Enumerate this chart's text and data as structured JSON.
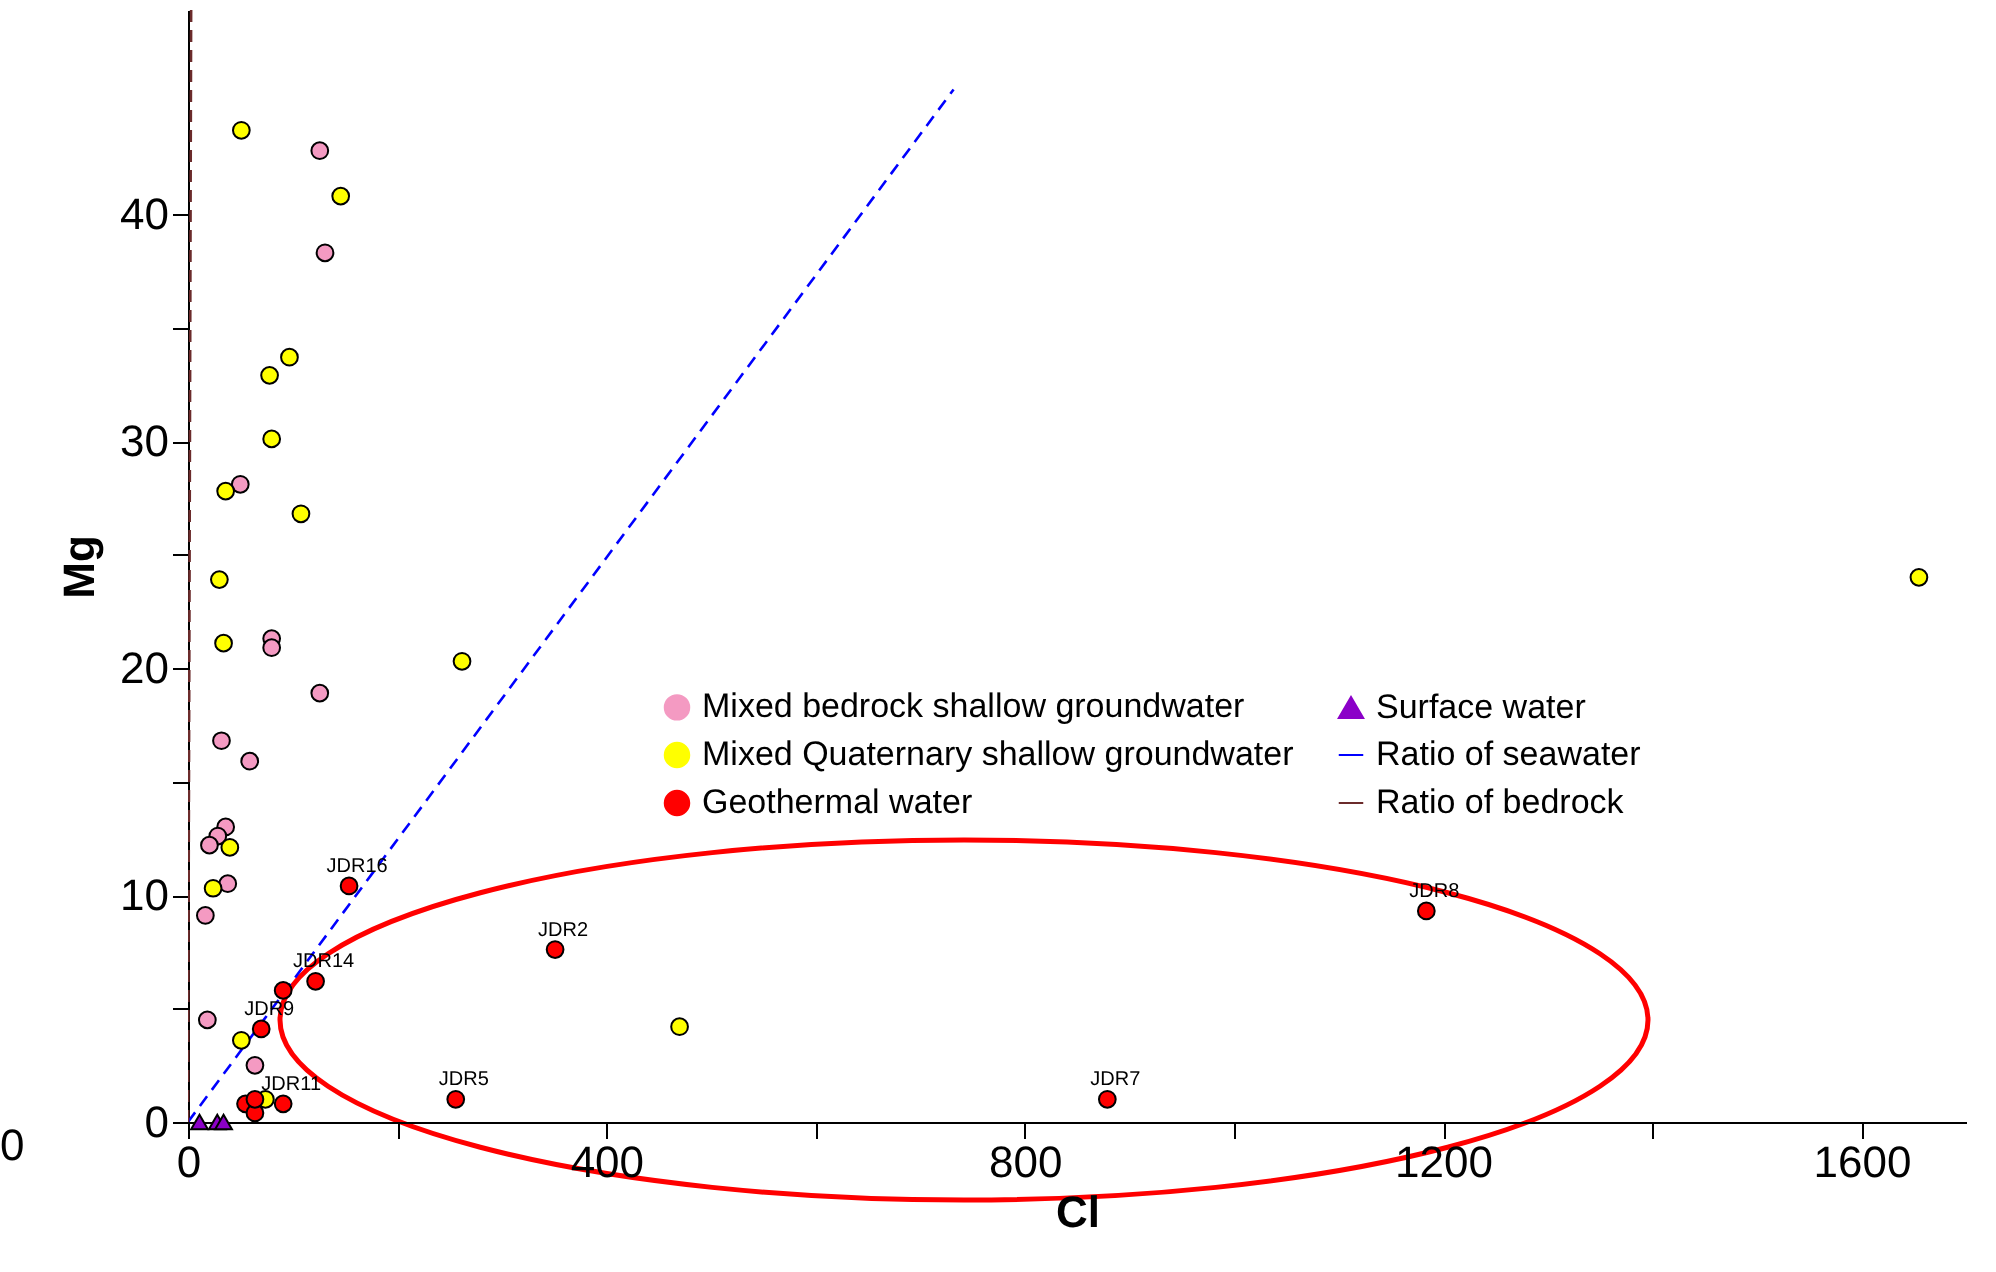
{
  "chart_data": {
    "type": "scatter",
    "xlabel": "Cl",
    "ylabel": "Mg",
    "xlim": [
      0,
      1700
    ],
    "ylim": [
      0,
      49
    ],
    "xticks": [
      0,
      {
        "value": 200,
        "label": null
      },
      400,
      {
        "value": 600,
        "label": null
      },
      800,
      {
        "value": 1000,
        "label": null
      },
      1200,
      {
        "value": 1400,
        "label": null
      },
      1600
    ],
    "yticks": [
      0,
      {
        "value": 5,
        "label": null
      },
      10,
      {
        "value": 15,
        "label": null
      },
      20,
      {
        "value": 25,
        "label": null
      },
      30,
      {
        "value": 35,
        "label": null
      },
      40
    ],
    "grid": false,
    "legend": "right",
    "series": [
      {
        "name": "Mixed bedrock shallow groundwater",
        "marker": "circle",
        "color": "#f49ac2",
        "x": [
          126,
          131,
          50,
          80,
          80,
          126,
          32,
          59,
          36,
          28.5,
          20.5,
          38,
          16.6,
          18.5,
          64
        ],
        "values": [
          42.8,
          38.3,
          28.1,
          21.3,
          20.9,
          18.9,
          16.8,
          15.9,
          13.0,
          12.6,
          12.2,
          10.5,
          9.1,
          4.5,
          2.5
        ]
      },
      {
        "name": "Mixed Quaternary shallow groundwater",
        "marker": "circle",
        "color": "#ffff00",
        "x": [
          51,
          146,
          97,
          78,
          80,
          36,
          108,
          30,
          34,
          262,
          1655,
          40,
          24,
          470,
          51,
          74
        ],
        "values": [
          43.7,
          40.8,
          33.7,
          32.9,
          30.1,
          27.8,
          26.8,
          23.9,
          21.1,
          20.3,
          24.0,
          12.1,
          10.3,
          4.2,
          3.6,
          1.0
        ]
      },
      {
        "name": "Geothermal water",
        "marker": "circle",
        "color": "#ff0000",
        "x": [
          154,
          122,
          91,
          70,
          351,
          1184,
          256,
          879,
          91,
          55,
          64,
          64
        ],
        "values": [
          10.4,
          6.2,
          5.8,
          4.1,
          7.6,
          9.3,
          1.0,
          1.0,
          0.8,
          0.8,
          0.4,
          1.0
        ]
      },
      {
        "name": "Surface water",
        "marker": "triangle",
        "color": "#8b00c8",
        "x": [
          11,
          28,
          34
        ],
        "values": [
          0,
          0,
          0
        ]
      },
      {
        "name": "Ratio of seawater",
        "type": "line",
        "line_style": "dashed",
        "color": "#0000ff",
        "x": [
          0,
          732
        ],
        "values": [
          0,
          45.5
        ]
      },
      {
        "name": "Ratio of bedrock",
        "type": "line",
        "line_style": "dashed",
        "color": "#6b2b2b",
        "x": [
          0,
          3
        ],
        "values": [
          0,
          49
        ]
      }
    ],
    "annotations": [
      {
        "text": "JDR16",
        "x": 154,
        "y": 10.4
      },
      {
        "text": "JDR14",
        "x": 122,
        "y": 6.2
      },
      {
        "text": "JDR9",
        "x": 70,
        "y": 4.1
      },
      {
        "text": "JDR2",
        "x": 351,
        "y": 7.6
      },
      {
        "text": "JDR8",
        "x": 1184,
        "y": 9.3
      },
      {
        "text": "JDR5",
        "x": 256,
        "y": 1.0
      },
      {
        "text": "JDR7",
        "x": 879,
        "y": 1.0
      },
      {
        "text": "JDR11",
        "x": 91,
        "y": 0.8
      },
      "0"
    ]
  }
}
